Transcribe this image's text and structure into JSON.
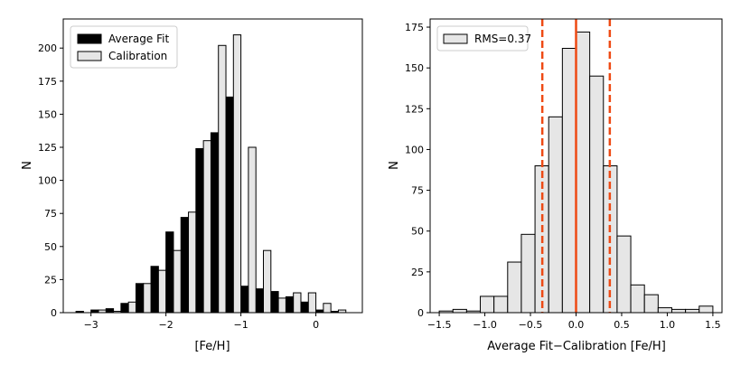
{
  "chart_data": [
    {
      "type": "bar",
      "id": "left",
      "xlabel": "[Fe/H]",
      "ylabel": "N",
      "xlim": [
        -3.37,
        0.62
      ],
      "ylim": [
        0,
        222
      ],
      "xticks": [
        -3,
        -2,
        -1,
        0
      ],
      "xtick_labels": [
        "−3",
        "−2",
        "−1",
        "0"
      ],
      "yticks": [
        0,
        25,
        50,
        75,
        100,
        125,
        150,
        175,
        200
      ],
      "yticks_labels": [
        "0",
        "25",
        "50",
        "75",
        "100",
        "125",
        "150",
        "175",
        "200"
      ],
      "bin_start": -3.2,
      "bin_width": 0.2,
      "series": [
        {
          "name": "Average Fit",
          "color": "#000000",
          "values": [
            1,
            2,
            3,
            7,
            22,
            35,
            61,
            72,
            124,
            136,
            163,
            20,
            18,
            16,
            12,
            8,
            2,
            1
          ]
        },
        {
          "name": "Calibration",
          "color": "#e6e6e6",
          "values": [
            0,
            2,
            1,
            8,
            22,
            32,
            47,
            76,
            130,
            202,
            210,
            125,
            47,
            11,
            15,
            15,
            7,
            2
          ]
        }
      ],
      "legend": {
        "position": "top-left",
        "entries": [
          "Average Fit",
          "Calibration"
        ]
      }
    },
    {
      "type": "bar",
      "id": "right",
      "xlabel": "Average Fit−Calibration [Fe/H]",
      "ylabel": "N",
      "xlim": [
        -1.6,
        1.6
      ],
      "ylim": [
        0,
        180
      ],
      "xticks": [
        -1.5,
        -1.0,
        -0.5,
        0.0,
        0.5,
        1.0,
        1.5
      ],
      "xtick_labels": [
        "−1.5",
        "−1.0",
        "−0.5",
        "0.0",
        "0.5",
        "1.0",
        "1.5"
      ],
      "yticks": [
        0,
        25,
        50,
        75,
        100,
        125,
        150,
        175
      ],
      "yticks_labels": [
        "0",
        "25",
        "50",
        "75",
        "100",
        "125",
        "150",
        "175"
      ],
      "bin_start": -1.5,
      "bin_width": 0.15,
      "series": [
        {
          "name": "RMS=0.37",
          "color": "#e6e6e6",
          "values": [
            1,
            2,
            1,
            10,
            10,
            31,
            48,
            90,
            120,
            162,
            172,
            145,
            90,
            47,
            17,
            11,
            3,
            2,
            2,
            4
          ]
        }
      ],
      "vlines": [
        {
          "x": -0.37,
          "style": "dashed",
          "color": "#ee4a14"
        },
        {
          "x": 0.0,
          "style": "solid",
          "color": "#ee4a14"
        },
        {
          "x": 0.37,
          "style": "dashed",
          "color": "#ee4a14"
        }
      ],
      "legend": {
        "position": "top-left",
        "entries": [
          "RMS=0.37"
        ]
      }
    }
  ]
}
